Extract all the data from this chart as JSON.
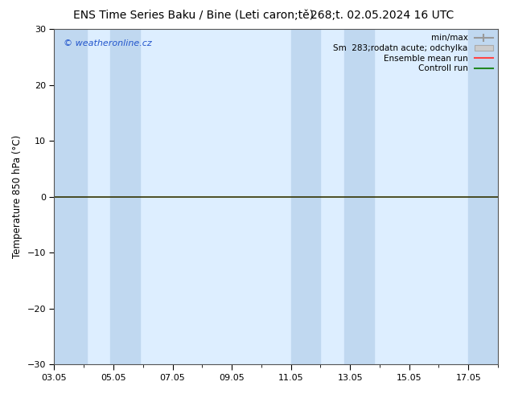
{
  "title_left": "ENS Time Series Baku / Bine (Leti caron;tě)",
  "title_right": "268;t. 02.05.2024 16 UTC",
  "ylabel": "Temperature 850 hPa (°C)",
  "ylim": [
    -30,
    30
  ],
  "yticks": [
    -30,
    -20,
    -10,
    0,
    10,
    20,
    30
  ],
  "xtick_labels": [
    "03.05",
    "05.05",
    "07.05",
    "09.05",
    "11.05",
    "13.05",
    "15.05",
    "17.05"
  ],
  "xtick_positions": [
    0,
    2,
    4,
    6,
    8,
    10,
    12,
    14
  ],
  "xlim": [
    0,
    15
  ],
  "shaded_bands": [
    [
      0.0,
      1.1
    ],
    [
      1.9,
      2.9
    ],
    [
      8.0,
      9.0
    ],
    [
      9.8,
      10.8
    ],
    [
      14.0,
      15.0
    ]
  ],
  "plot_bg_color": "#ddeeff",
  "shade_color": "#c0d8f0",
  "zero_line_color": "#333300",
  "watermark": "© weatheronline.cz",
  "legend_labels": [
    "min/max",
    "Sm  283;rodatn acute; odchylka",
    "Ensemble mean run",
    "Controll run"
  ],
  "legend_line_colors": [
    "#aaaaaa",
    "#bbbbbb",
    "#ff4444",
    "#228822"
  ],
  "bg_color": "#ffffff",
  "title_fontsize": 10,
  "axis_fontsize": 8.5,
  "tick_fontsize": 8
}
